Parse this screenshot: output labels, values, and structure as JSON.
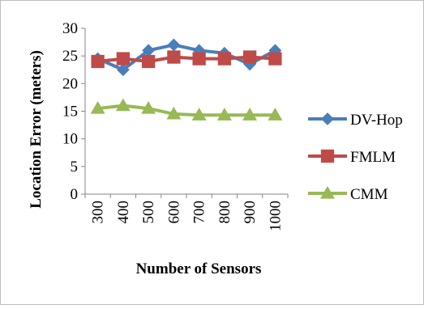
{
  "chart_data": {
    "type": "line",
    "title": "",
    "xlabel": "Number of Sensors",
    "ylabel": "Location Error  (meters)",
    "categories": [
      "300",
      "400",
      "500",
      "600",
      "700",
      "800",
      "900",
      "1000"
    ],
    "ylim": [
      0,
      30
    ],
    "yticks": [
      "0",
      "5",
      "10",
      "15",
      "20",
      "25",
      "30"
    ],
    "grid": false,
    "legend_position": "right",
    "series": [
      {
        "name": "DV-Hop",
        "values": [
          24.5,
          22.5,
          26,
          27,
          26,
          25.5,
          23.5,
          26
        ],
        "color": "#4a7ebb",
        "marker": "diamond"
      },
      {
        "name": "FMLM",
        "values": [
          24,
          24.5,
          24,
          24.8,
          24.5,
          24.5,
          24.8,
          24.5
        ],
        "color": "#be4b48",
        "marker": "square"
      },
      {
        "name": "CMM",
        "values": [
          15.5,
          16,
          15.5,
          14.5,
          14.3,
          14.3,
          14.3,
          14.3
        ],
        "color": "#98b954",
        "marker": "triangle"
      }
    ]
  }
}
